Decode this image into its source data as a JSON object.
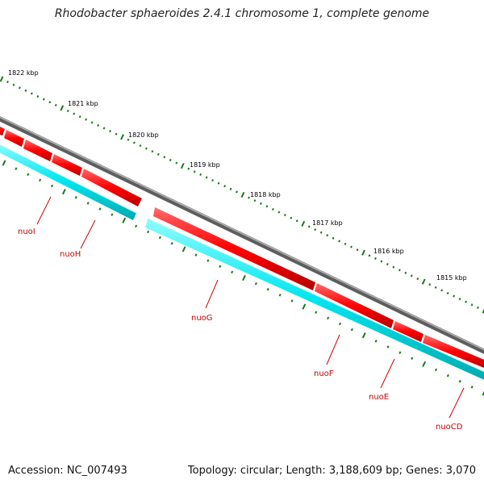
{
  "title": "Rhodobacter sphaeroides 2.4.1 chromosome 1, complete genome",
  "accession": "Accession: NC_007493",
  "summary": "Topology: circular; Length: 3,188,609 bp; Genes: 3,070",
  "kbp_labels": [
    "1822 kbp",
    "1821 kbp",
    "1820 kbp",
    "1819 kbp",
    "1818 kbp",
    "1817 kbp",
    "1816 kbp",
    "1815 kbp"
  ],
  "genes": [
    {
      "name": "nuoI"
    },
    {
      "name": "nuoH"
    },
    {
      "name": "nuoG"
    },
    {
      "name": "nuoF"
    },
    {
      "name": "nuoE"
    },
    {
      "name": "nuoCD"
    }
  ],
  "colors": {
    "gene_forward": "#ff0000",
    "gene_reverse_band": "#00e5ee",
    "backbone": "#7a7a7a",
    "tick": "#1a7a1a",
    "label": "#cc0000"
  }
}
